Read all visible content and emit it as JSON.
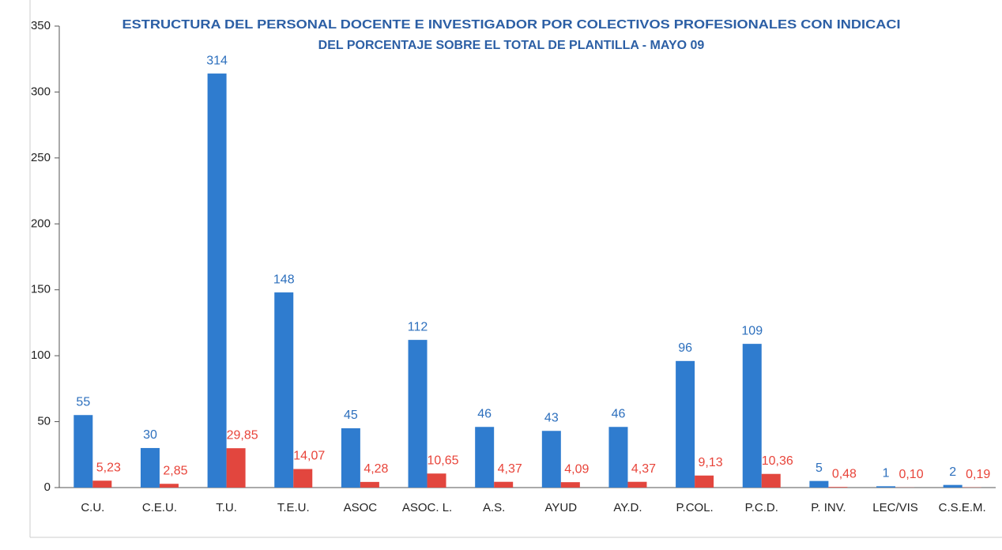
{
  "chart_data": {
    "type": "bar",
    "title": "ESTRUCTURA DEL PERSONAL DOCENTE E INVESTIGADOR POR COLECTIVOS PROFESIONALES CON INDICACI",
    "subtitle": "DEL PORCENTAJE SOBRE EL TOTAL DE PLANTILLA - MAYO 09",
    "categories": [
      "C.U.",
      "C.E.U.",
      "T.U.",
      "T.E.U.",
      "ASOC",
      "ASOC. L.",
      "A.S.",
      "AYUD",
      "AY.D.",
      "P.COL.",
      "P.C.D.",
      "P. INV.",
      "LEC/VIS",
      "C.S.E.M."
    ],
    "series": [
      {
        "color": "#2f7ccf",
        "label_color": "#2c6fbd",
        "values": [
          55,
          30,
          314,
          148,
          45,
          112,
          46,
          43,
          46,
          96,
          109,
          5,
          1,
          2
        ]
      },
      {
        "color": "#e2463e",
        "label_color": "#e8443a",
        "values": [
          5.23,
          2.85,
          29.85,
          14.07,
          4.28,
          10.65,
          4.37,
          4.09,
          4.37,
          9.13,
          10.36,
          0.48,
          0.1,
          0.19
        ],
        "value_labels": [
          "5,23",
          "2,85",
          "29,85",
          "14,07",
          "4,28",
          "10,65",
          "4,37",
          "4,09",
          "4,37",
          "9,13",
          "10,36",
          "0,48",
          "0,10",
          "0,19"
        ]
      }
    ],
    "ylim": [
      0,
      350
    ],
    "yticks": [
      0,
      50,
      100,
      150,
      200,
      250,
      300,
      350
    ],
    "grid": false
  }
}
